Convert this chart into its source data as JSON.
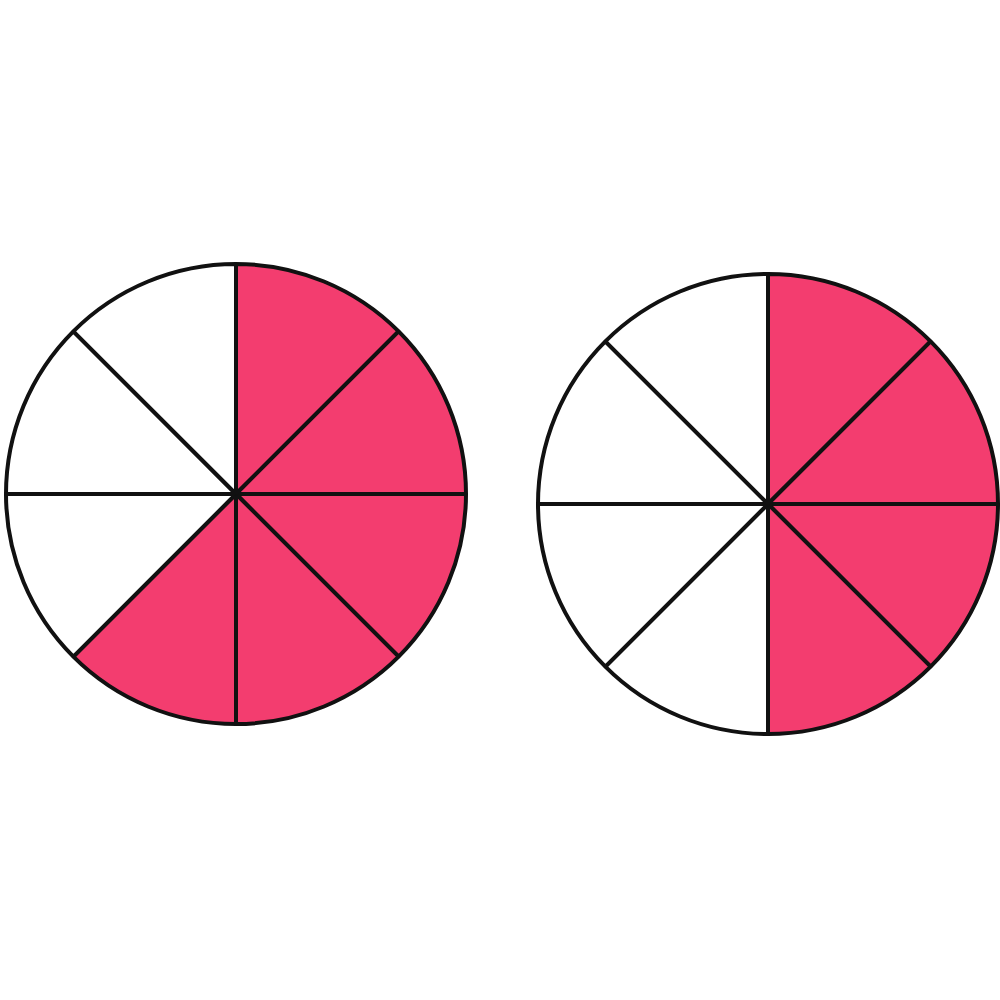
{
  "chart_data": [
    {
      "type": "pie",
      "categories": [
        null,
        null,
        null,
        null,
        null,
        null,
        null,
        null
      ],
      "values": [
        12.5,
        12.5,
        12.5,
        12.5,
        12.5,
        12.5,
        12.5,
        12.5
      ],
      "colors": [
        "#f33d6f",
        "#f33d6f",
        "#f33d6f",
        "#f33d6f",
        "#f33d6f",
        "#ffffff",
        "#ffffff",
        "#ffffff"
      ]
    },
    {
      "type": "pie",
      "categories": [
        null,
        null,
        null,
        null,
        null,
        null,
        null,
        null
      ],
      "values": [
        12.5,
        12.5,
        12.5,
        12.5,
        12.5,
        12.5,
        12.5,
        12.5
      ],
      "colors": [
        "#f33d6f",
        "#f33d6f",
        "#f33d6f",
        "#f33d6f",
        "#ffffff",
        "#ffffff",
        "#ffffff",
        "#ffffff"
      ]
    }
  ]
}
